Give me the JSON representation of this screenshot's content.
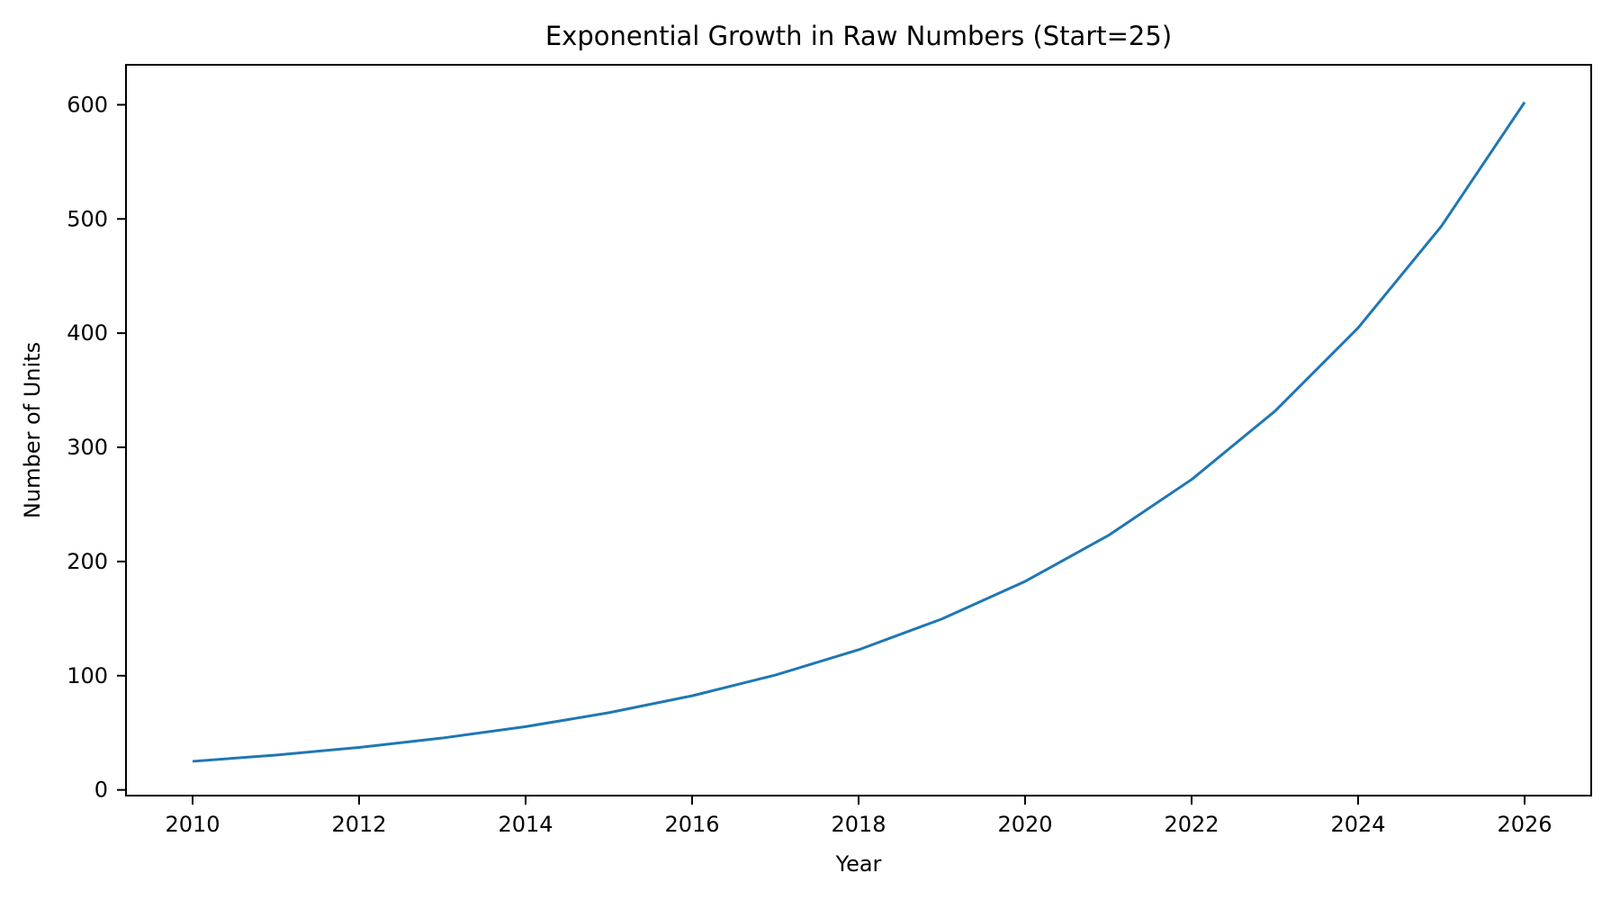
{
  "chart_data": {
    "type": "line",
    "title": "Exponential Growth in Raw Numbers (Start=25)",
    "xlabel": "Year",
    "ylabel": "Number of Units",
    "x": [
      2010,
      2011,
      2012,
      2013,
      2014,
      2015,
      2016,
      2017,
      2018,
      2019,
      2020,
      2021,
      2022,
      2023,
      2024,
      2025,
      2026
    ],
    "values": [
      25.0,
      30.5,
      37.2,
      45.4,
      55.4,
      67.6,
      82.4,
      100.6,
      122.7,
      149.7,
      182.6,
      222.8,
      271.8,
      331.6,
      404.6,
      493.6,
      602.2
    ],
    "xticks": [
      2010,
      2012,
      2014,
      2016,
      2018,
      2020,
      2022,
      2024,
      2026
    ],
    "yticks": [
      0,
      100,
      200,
      300,
      400,
      500,
      600
    ],
    "xlim": [
      2009.2,
      2026.8
    ],
    "ylim": [
      -5,
      635
    ],
    "line_color": "#1f77b4",
    "line_width": 3,
    "axis_color": "#000000",
    "background_color": "#ffffff",
    "grid": false,
    "legend": null
  }
}
